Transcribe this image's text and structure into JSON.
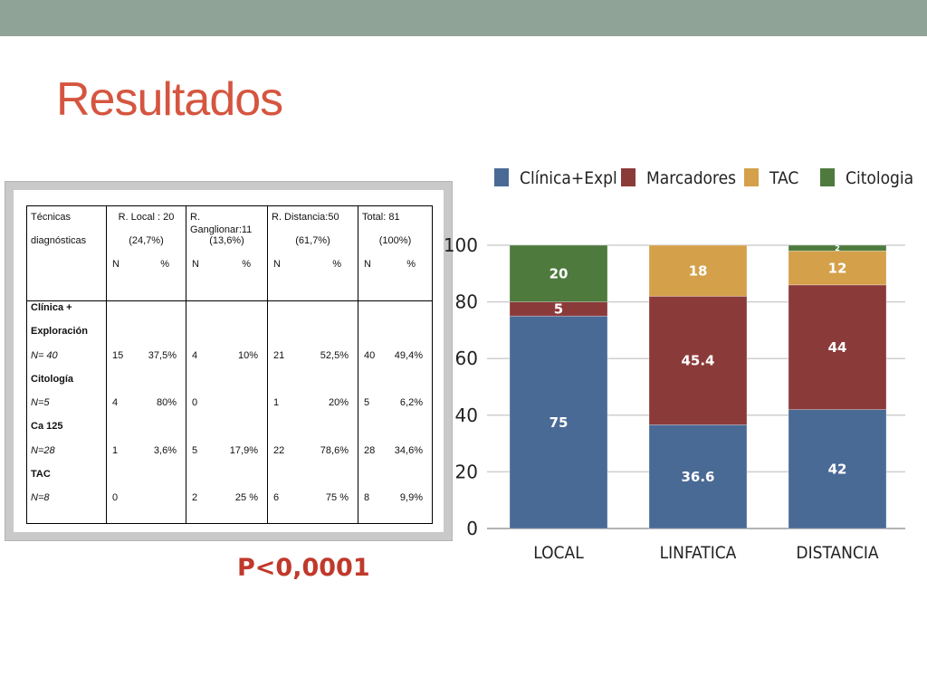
{
  "slide": {
    "title": "Resultados",
    "pvalue": "P<0,0001"
  },
  "table": {
    "header": {
      "col0": [
        "Técnicas",
        "diagnósticas"
      ],
      "col1": [
        "R. Local : 20",
        "(24,7%)"
      ],
      "col2": [
        "R. Ganglionar:11",
        "(13,6%)"
      ],
      "col3": [
        "R. Distancia:50",
        "(61,7%)"
      ],
      "col4": [
        "Total: 81",
        "(100%)"
      ],
      "n_label": "N",
      "pct_label": "%"
    },
    "row_labels": [
      {
        "text": "Clínica +",
        "style": "bold"
      },
      {
        "text": "Exploración",
        "style": "bold"
      },
      {
        "text": "N= 40",
        "style": "ital"
      },
      {
        "text": "Citología",
        "style": "bold"
      },
      {
        "text": "N=5",
        "style": "ital"
      },
      {
        "text": "Ca 125",
        "style": "bold"
      },
      {
        "text": "N=28",
        "style": "ital"
      },
      {
        "text": "TAC",
        "style": "bold"
      },
      {
        "text": "N=8",
        "style": "ital"
      }
    ],
    "columns": [
      [
        [
          "",
          ""
        ],
        [
          "",
          ""
        ],
        [
          "15",
          "37,5%"
        ],
        [
          "",
          ""
        ],
        [
          "4",
          "80%"
        ],
        [
          "",
          ""
        ],
        [
          "1",
          "3,6%"
        ],
        [
          "",
          ""
        ],
        [
          "0",
          ""
        ]
      ],
      [
        [
          "",
          ""
        ],
        [
          "",
          ""
        ],
        [
          "4",
          "10%"
        ],
        [
          "",
          ""
        ],
        [
          "0",
          ""
        ],
        [
          "",
          ""
        ],
        [
          "5",
          "17,9%"
        ],
        [
          "",
          ""
        ],
        [
          "2",
          "25 %"
        ]
      ],
      [
        [
          "",
          ""
        ],
        [
          "",
          ""
        ],
        [
          "21",
          "52,5%"
        ],
        [
          "",
          ""
        ],
        [
          "1",
          "20%"
        ],
        [
          "",
          ""
        ],
        [
          "22",
          "78,6%"
        ],
        [
          "",
          ""
        ],
        [
          "6",
          "75 %"
        ]
      ],
      [
        [
          "",
          ""
        ],
        [
          "",
          ""
        ],
        [
          "40",
          "49,4%"
        ],
        [
          "",
          ""
        ],
        [
          "5",
          "6,2%"
        ],
        [
          "",
          ""
        ],
        [
          "28",
          "34,6%"
        ],
        [
          "",
          ""
        ],
        [
          "8",
          "9,9%"
        ]
      ]
    ]
  },
  "chart_data": {
    "type": "bar",
    "stacked": true,
    "categories": [
      "LOCAL",
      "LINFATICA",
      "DISTANCIA"
    ],
    "series": [
      {
        "name": "Clínica+Expl",
        "color": "#4a6a96",
        "values": [
          75,
          36.6,
          42
        ],
        "labels": [
          "75",
          "36.6",
          "42"
        ]
      },
      {
        "name": "Marcadores",
        "color": "#8b3a3a",
        "values": [
          5,
          45.4,
          44
        ],
        "labels": [
          "5",
          "45.4",
          "44"
        ]
      },
      {
        "name": "TAC",
        "color": "#d4a04a",
        "values": [
          0,
          18,
          12
        ],
        "labels": [
          "",
          "18",
          "12"
        ]
      },
      {
        "name": "Citologia",
        "color": "#4e7a3e",
        "values": [
          20,
          0,
          2
        ],
        "labels": [
          "20",
          "",
          "2"
        ]
      }
    ],
    "yticks": [
      0,
      20,
      40,
      60,
      80,
      100
    ],
    "ylim": [
      0,
      100
    ],
    "grid": true,
    "legend_position": "top"
  }
}
